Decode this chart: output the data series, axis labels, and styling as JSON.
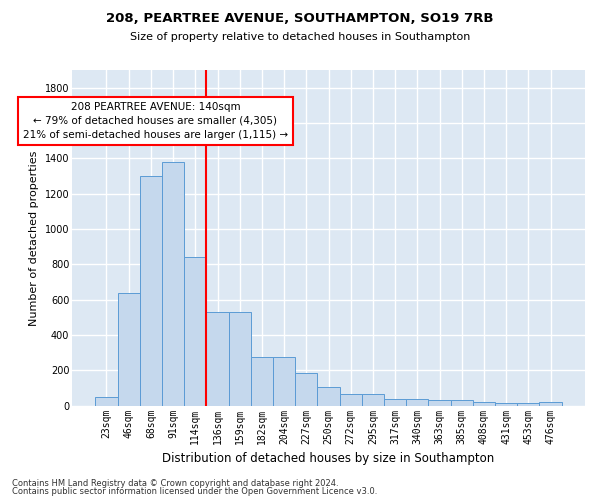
{
  "title1": "208, PEARTREE AVENUE, SOUTHAMPTON, SO19 7RB",
  "title2": "Size of property relative to detached houses in Southampton",
  "xlabel": "Distribution of detached houses by size in Southampton",
  "ylabel": "Number of detached properties",
  "categories": [
    "23sqm",
    "46sqm",
    "68sqm",
    "91sqm",
    "114sqm",
    "136sqm",
    "159sqm",
    "182sqm",
    "204sqm",
    "227sqm",
    "250sqm",
    "272sqm",
    "295sqm",
    "317sqm",
    "340sqm",
    "363sqm",
    "385sqm",
    "408sqm",
    "431sqm",
    "453sqm",
    "476sqm"
  ],
  "values": [
    50,
    640,
    1300,
    1380,
    840,
    530,
    530,
    275,
    275,
    185,
    105,
    65,
    65,
    35,
    35,
    30,
    30,
    20,
    15,
    15,
    20
  ],
  "bar_color": "#c5d8ed",
  "bar_edge_color": "#5b9bd5",
  "vline_color": "red",
  "vline_x_idx": 5,
  "annotation_text": "208 PEARTREE AVENUE: 140sqm\n← 79% of detached houses are smaller (4,305)\n21% of semi-detached houses are larger (1,115) →",
  "annotation_box_color": "white",
  "annotation_box_edge_color": "red",
  "ylim": [
    0,
    1900
  ],
  "yticks": [
    0,
    200,
    400,
    600,
    800,
    1000,
    1200,
    1400,
    1600,
    1800
  ],
  "footer1": "Contains HM Land Registry data © Crown copyright and database right 2024.",
  "footer2": "Contains public sector information licensed under the Open Government Licence v3.0.",
  "bg_color": "#dde8f3",
  "grid_color": "white",
  "title1_fontsize": 9.5,
  "title2_fontsize": 8.0,
  "ylabel_fontsize": 8.0,
  "xlabel_fontsize": 8.5,
  "tick_fontsize": 7.0,
  "footer_fontsize": 6.0,
  "annot_fontsize": 7.5
}
